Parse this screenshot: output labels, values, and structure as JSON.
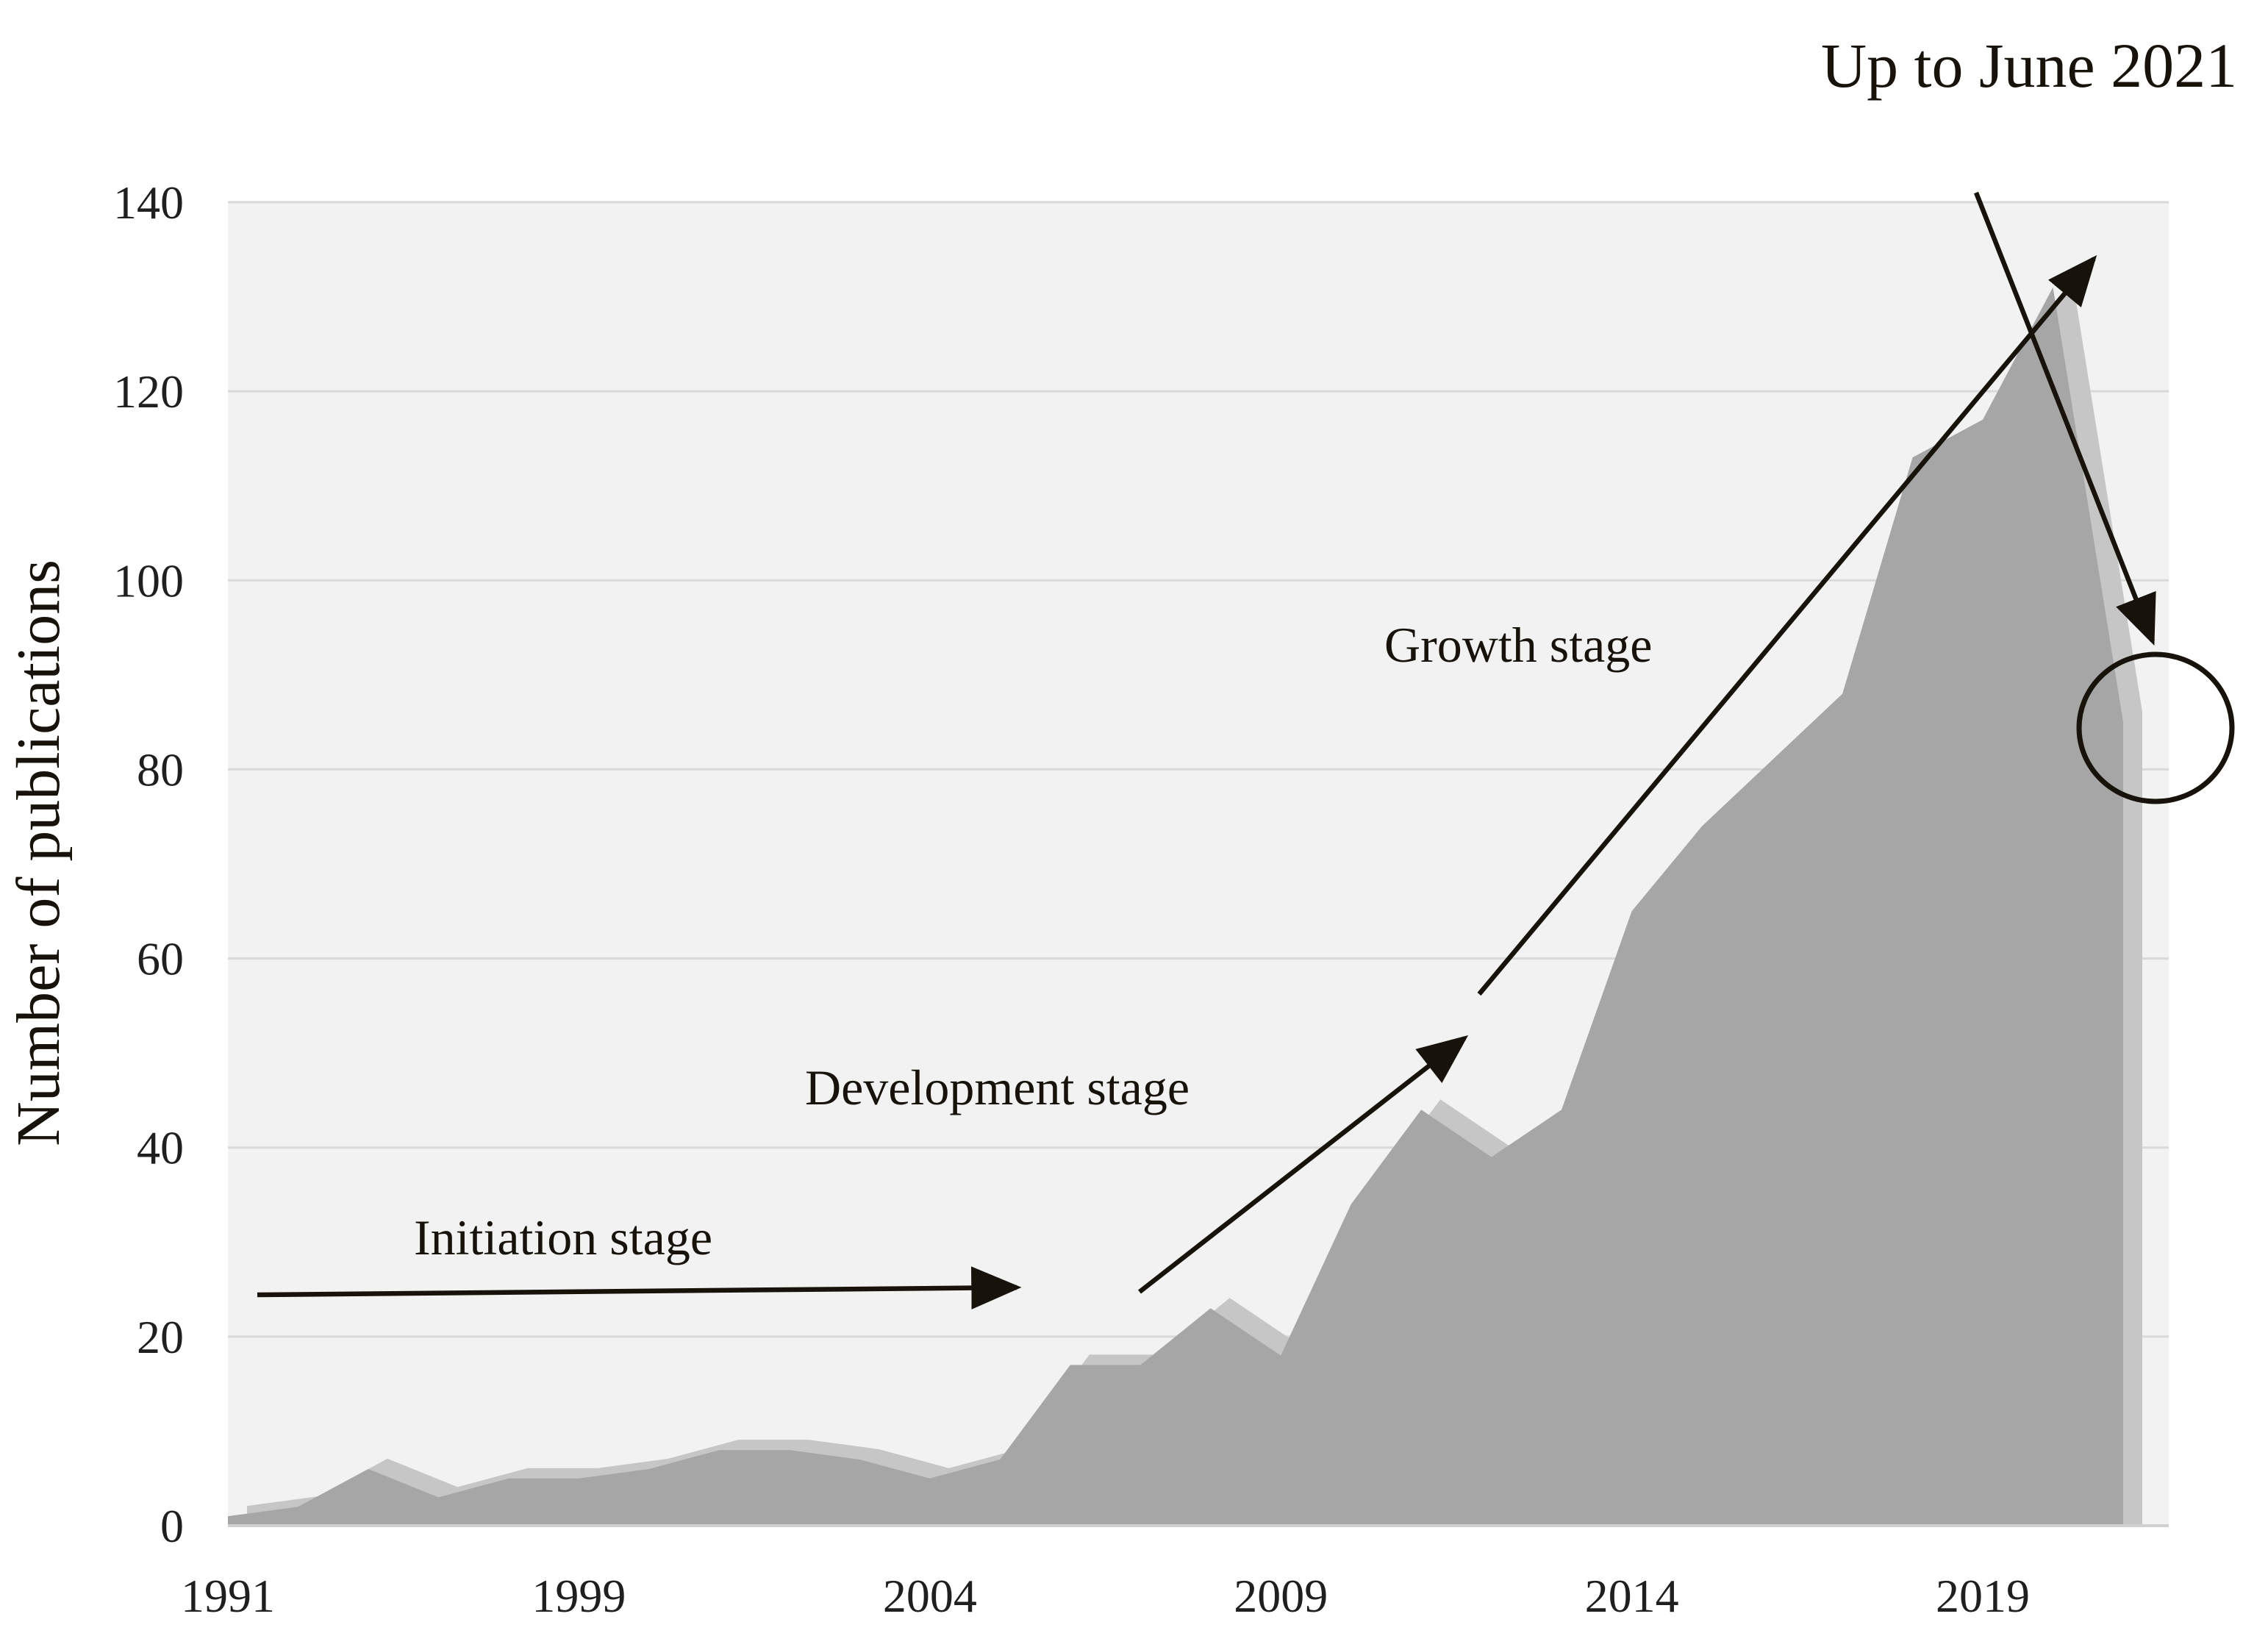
{
  "annotation_top": "Up to June 2021",
  "y_axis_title": "Number of publications",
  "stages": {
    "initiation": "Initiation stage",
    "development": "Development stage",
    "growth": "Growth stage"
  },
  "chart_data": {
    "type": "area",
    "title": "",
    "xlabel": "",
    "ylabel": "Number of publications",
    "ylim": [
      0,
      140
    ],
    "grid": "horizontal",
    "legend": "none",
    "y_ticks": [
      0,
      20,
      40,
      60,
      80,
      100,
      120,
      140
    ],
    "x_tick_labels": [
      "1991",
      "1999",
      "2004",
      "2009",
      "2014",
      "2019"
    ],
    "x_tick_indices": [
      0,
      5,
      10,
      15,
      20,
      25
    ],
    "n_points": 28,
    "x_span_note": "28 evenly spaced yearly categories from 1991 up to June 2021; last point is the partial year 2021",
    "values": [
      1,
      2,
      6,
      3,
      5,
      5,
      6,
      8,
      8,
      7,
      5,
      7,
      17,
      17,
      23,
      18,
      34,
      44,
      39,
      44,
      65,
      74,
      81,
      88,
      113,
      117,
      131,
      85
    ],
    "annotations": [
      {
        "label": "Initiation stage",
        "type": "arrow-right"
      },
      {
        "label": "Development stage",
        "type": "arrow-up-right"
      },
      {
        "label": "Growth stage",
        "type": "arrow-up-right"
      },
      {
        "label": "Up to June 2021",
        "type": "arrow-down-right-to-circle"
      }
    ],
    "colors": {
      "area": "#a6a6a6",
      "area_shadow": "#c6c6c6",
      "plot_bg": "#f2f2f2",
      "gridline": "#d9d9d9",
      "axis_line": "#d0d0d0",
      "ink": "#17130b"
    }
  }
}
